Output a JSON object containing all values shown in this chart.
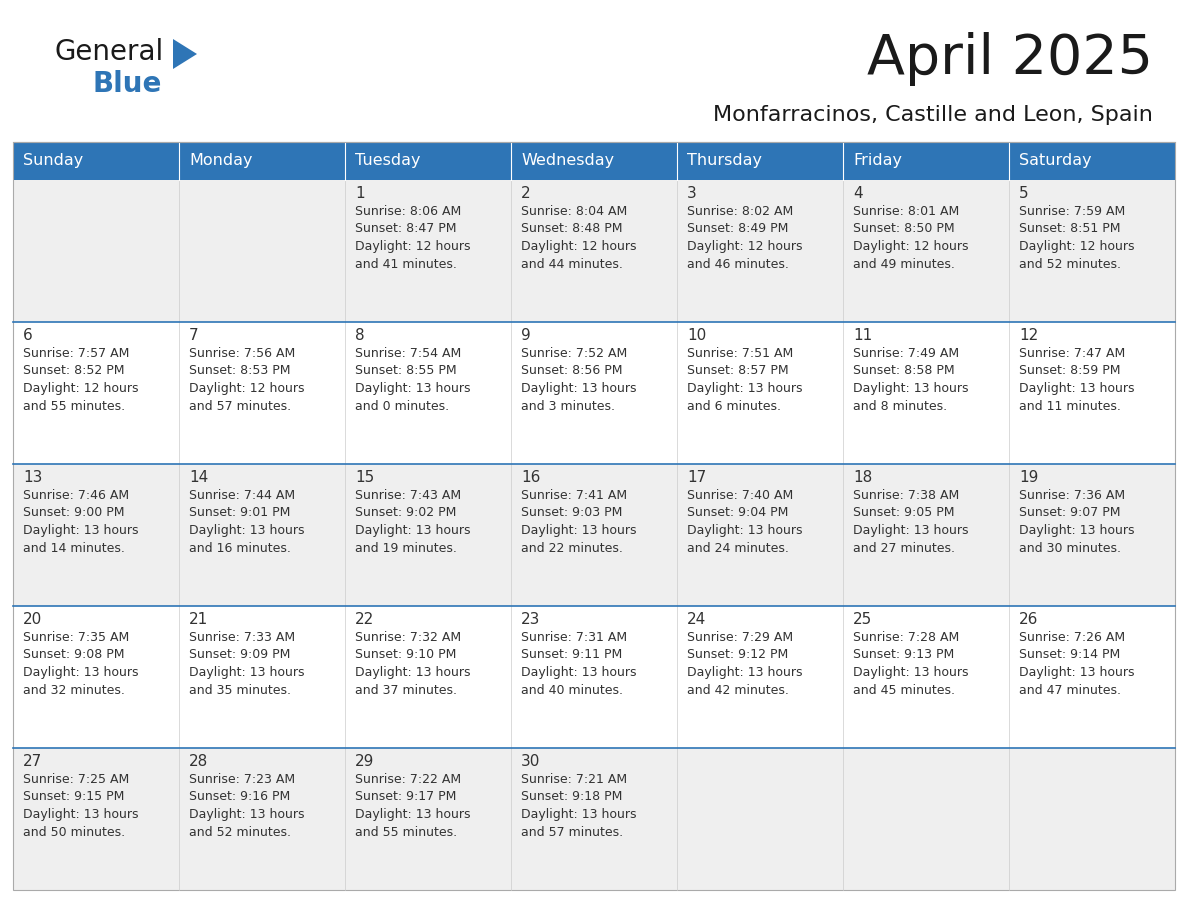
{
  "title": "April 2025",
  "subtitle": "Monfarracinos, Castille and Leon, Spain",
  "header_bg": "#2E75B6",
  "header_text_color": "#FFFFFF",
  "cell_bg_light": "#EFEFEF",
  "cell_bg_white": "#FFFFFF",
  "text_color": "#333333",
  "border_color": "#2E75B6",
  "days_of_week": [
    "Sunday",
    "Monday",
    "Tuesday",
    "Wednesday",
    "Thursday",
    "Friday",
    "Saturday"
  ],
  "calendar_data": [
    [
      {
        "day": "",
        "sunrise": "",
        "sunset": "",
        "daylight_l1": "",
        "daylight_l2": ""
      },
      {
        "day": "",
        "sunrise": "",
        "sunset": "",
        "daylight_l1": "",
        "daylight_l2": ""
      },
      {
        "day": "1",
        "sunrise": "8:06 AM",
        "sunset": "8:47 PM",
        "daylight_l1": "Daylight: 12 hours",
        "daylight_l2": "and 41 minutes."
      },
      {
        "day": "2",
        "sunrise": "8:04 AM",
        "sunset": "8:48 PM",
        "daylight_l1": "Daylight: 12 hours",
        "daylight_l2": "and 44 minutes."
      },
      {
        "day": "3",
        "sunrise": "8:02 AM",
        "sunset": "8:49 PM",
        "daylight_l1": "Daylight: 12 hours",
        "daylight_l2": "and 46 minutes."
      },
      {
        "day": "4",
        "sunrise": "8:01 AM",
        "sunset": "8:50 PM",
        "daylight_l1": "Daylight: 12 hours",
        "daylight_l2": "and 49 minutes."
      },
      {
        "day": "5",
        "sunrise": "7:59 AM",
        "sunset": "8:51 PM",
        "daylight_l1": "Daylight: 12 hours",
        "daylight_l2": "and 52 minutes."
      }
    ],
    [
      {
        "day": "6",
        "sunrise": "7:57 AM",
        "sunset": "8:52 PM",
        "daylight_l1": "Daylight: 12 hours",
        "daylight_l2": "and 55 minutes."
      },
      {
        "day": "7",
        "sunrise": "7:56 AM",
        "sunset": "8:53 PM",
        "daylight_l1": "Daylight: 12 hours",
        "daylight_l2": "and 57 minutes."
      },
      {
        "day": "8",
        "sunrise": "7:54 AM",
        "sunset": "8:55 PM",
        "daylight_l1": "Daylight: 13 hours",
        "daylight_l2": "and 0 minutes."
      },
      {
        "day": "9",
        "sunrise": "7:52 AM",
        "sunset": "8:56 PM",
        "daylight_l1": "Daylight: 13 hours",
        "daylight_l2": "and 3 minutes."
      },
      {
        "day": "10",
        "sunrise": "7:51 AM",
        "sunset": "8:57 PM",
        "daylight_l1": "Daylight: 13 hours",
        "daylight_l2": "and 6 minutes."
      },
      {
        "day": "11",
        "sunrise": "7:49 AM",
        "sunset": "8:58 PM",
        "daylight_l1": "Daylight: 13 hours",
        "daylight_l2": "and 8 minutes."
      },
      {
        "day": "12",
        "sunrise": "7:47 AM",
        "sunset": "8:59 PM",
        "daylight_l1": "Daylight: 13 hours",
        "daylight_l2": "and 11 minutes."
      }
    ],
    [
      {
        "day": "13",
        "sunrise": "7:46 AM",
        "sunset": "9:00 PM",
        "daylight_l1": "Daylight: 13 hours",
        "daylight_l2": "and 14 minutes."
      },
      {
        "day": "14",
        "sunrise": "7:44 AM",
        "sunset": "9:01 PM",
        "daylight_l1": "Daylight: 13 hours",
        "daylight_l2": "and 16 minutes."
      },
      {
        "day": "15",
        "sunrise": "7:43 AM",
        "sunset": "9:02 PM",
        "daylight_l1": "Daylight: 13 hours",
        "daylight_l2": "and 19 minutes."
      },
      {
        "day": "16",
        "sunrise": "7:41 AM",
        "sunset": "9:03 PM",
        "daylight_l1": "Daylight: 13 hours",
        "daylight_l2": "and 22 minutes."
      },
      {
        "day": "17",
        "sunrise": "7:40 AM",
        "sunset": "9:04 PM",
        "daylight_l1": "Daylight: 13 hours",
        "daylight_l2": "and 24 minutes."
      },
      {
        "day": "18",
        "sunrise": "7:38 AM",
        "sunset": "9:05 PM",
        "daylight_l1": "Daylight: 13 hours",
        "daylight_l2": "and 27 minutes."
      },
      {
        "day": "19",
        "sunrise": "7:36 AM",
        "sunset": "9:07 PM",
        "daylight_l1": "Daylight: 13 hours",
        "daylight_l2": "and 30 minutes."
      }
    ],
    [
      {
        "day": "20",
        "sunrise": "7:35 AM",
        "sunset": "9:08 PM",
        "daylight_l1": "Daylight: 13 hours",
        "daylight_l2": "and 32 minutes."
      },
      {
        "day": "21",
        "sunrise": "7:33 AM",
        "sunset": "9:09 PM",
        "daylight_l1": "Daylight: 13 hours",
        "daylight_l2": "and 35 minutes."
      },
      {
        "day": "22",
        "sunrise": "7:32 AM",
        "sunset": "9:10 PM",
        "daylight_l1": "Daylight: 13 hours",
        "daylight_l2": "and 37 minutes."
      },
      {
        "day": "23",
        "sunrise": "7:31 AM",
        "sunset": "9:11 PM",
        "daylight_l1": "Daylight: 13 hours",
        "daylight_l2": "and 40 minutes."
      },
      {
        "day": "24",
        "sunrise": "7:29 AM",
        "sunset": "9:12 PM",
        "daylight_l1": "Daylight: 13 hours",
        "daylight_l2": "and 42 minutes."
      },
      {
        "day": "25",
        "sunrise": "7:28 AM",
        "sunset": "9:13 PM",
        "daylight_l1": "Daylight: 13 hours",
        "daylight_l2": "and 45 minutes."
      },
      {
        "day": "26",
        "sunrise": "7:26 AM",
        "sunset": "9:14 PM",
        "daylight_l1": "Daylight: 13 hours",
        "daylight_l2": "and 47 minutes."
      }
    ],
    [
      {
        "day": "27",
        "sunrise": "7:25 AM",
        "sunset": "9:15 PM",
        "daylight_l1": "Daylight: 13 hours",
        "daylight_l2": "and 50 minutes."
      },
      {
        "day": "28",
        "sunrise": "7:23 AM",
        "sunset": "9:16 PM",
        "daylight_l1": "Daylight: 13 hours",
        "daylight_l2": "and 52 minutes."
      },
      {
        "day": "29",
        "sunrise": "7:22 AM",
        "sunset": "9:17 PM",
        "daylight_l1": "Daylight: 13 hours",
        "daylight_l2": "and 55 minutes."
      },
      {
        "day": "30",
        "sunrise": "7:21 AM",
        "sunset": "9:18 PM",
        "daylight_l1": "Daylight: 13 hours",
        "daylight_l2": "and 57 minutes."
      },
      {
        "day": "",
        "sunrise": "",
        "sunset": "",
        "daylight_l1": "",
        "daylight_l2": ""
      },
      {
        "day": "",
        "sunrise": "",
        "sunset": "",
        "daylight_l1": "",
        "daylight_l2": ""
      },
      {
        "day": "",
        "sunrise": "",
        "sunset": "",
        "daylight_l1": "",
        "daylight_l2": ""
      }
    ]
  ]
}
